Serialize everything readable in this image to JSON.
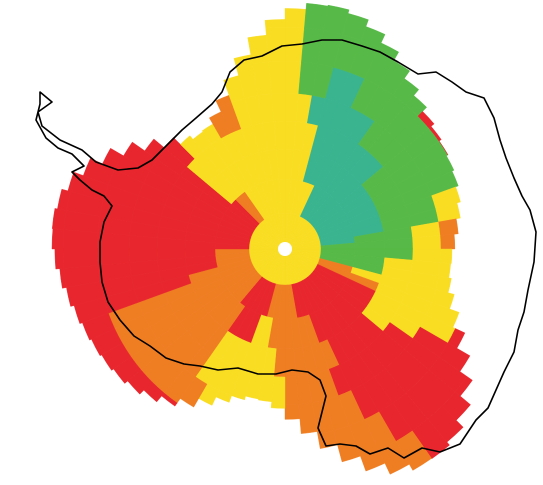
{
  "map": {
    "title": "",
    "palette": {
      "red": "#e8262d",
      "orange": "#ef7d22",
      "yellow": "#f9dd23",
      "light_green": "#57b947",
      "teal": "#39b48f"
    },
    "outline_color": "#000000",
    "center_color": "#ffffff",
    "rings": 8,
    "sectors": 72,
    "sector_colors_by_ring": [
      [
        "yellow",
        "yellow",
        "yellow",
        "yellow",
        "yellow",
        "yellow",
        "yellow",
        "yellow",
        "yellow",
        "yellow",
        "yellow",
        "yellow",
        "yellow",
        "yellow",
        "yellow",
        "yellow",
        "yellow",
        "yellow",
        "yellow",
        "yellow",
        "yellow",
        "yellow",
        "yellow",
        "yellow",
        "yellow",
        "yellow",
        "yellow",
        "yellow",
        "yellow",
        "yellow",
        "yellow",
        "yellow",
        "yellow",
        "yellow",
        "yellow",
        "yellow",
        "yellow",
        "yellow",
        "yellow",
        "yellow",
        "yellow",
        "yellow",
        "yellow",
        "yellow",
        "yellow",
        "yellow",
        "yellow",
        "yellow",
        "yellow",
        "yellow",
        "yellow",
        "yellow",
        "yellow",
        "yellow",
        "yellow",
        "yellow",
        "yellow",
        "yellow",
        "yellow",
        "yellow",
        "yellow",
        "yellow",
        "yellow",
        "yellow",
        "yellow",
        "yellow",
        "yellow",
        "yellow",
        "yellow",
        "yellow",
        "yellow",
        "yellow"
      ],
      [
        "yellow",
        "yellow",
        "yellow",
        "yellow",
        "yellow",
        "teal",
        "teal",
        "teal",
        "teal",
        "teal",
        "teal",
        "teal",
        "teal",
        "teal",
        "teal",
        "teal",
        "teal",
        "light_green",
        "light_green",
        "light_green",
        "light_green",
        "orange",
        "orange",
        "red",
        "red",
        "red",
        "red",
        "red",
        "red",
        "red",
        "red",
        "red",
        "red",
        "red",
        "orange",
        "orange",
        "orange",
        "orange",
        "orange",
        "red",
        "red",
        "red",
        "red",
        "red",
        "orange",
        "orange",
        "orange",
        "orange",
        "orange",
        "orange",
        "orange",
        "orange",
        "orange",
        "orange",
        "red",
        "red",
        "red",
        "red",
        "red",
        "red",
        "red",
        "red",
        "red",
        "orange",
        "orange",
        "yellow",
        "yellow",
        "yellow",
        "yellow",
        "yellow",
        "yellow",
        "yellow"
      ],
      [
        "yellow",
        "yellow",
        "yellow",
        "teal",
        "teal",
        "teal",
        "teal",
        "teal",
        "teal",
        "teal",
        "teal",
        "teal",
        "teal",
        "teal",
        "teal",
        "teal",
        "light_green",
        "light_green",
        "light_green",
        "light_green",
        "light_green",
        "yellow",
        "orange",
        "red",
        "red",
        "red",
        "red",
        "red",
        "red",
        "red",
        "red",
        "red",
        "orange",
        "orange",
        "orange",
        "orange",
        "orange",
        "orange",
        "yellow",
        "yellow",
        "red",
        "red",
        "red",
        "orange",
        "orange",
        "orange",
        "orange",
        "orange",
        "orange",
        "orange",
        "orange",
        "red",
        "red",
        "red",
        "red",
        "red",
        "red",
        "red",
        "red",
        "red",
        "red",
        "red",
        "yellow",
        "yellow",
        "yellow",
        "yellow",
        "yellow",
        "yellow",
        "yellow",
        "yellow",
        "yellow",
        "yellow"
      ],
      [
        "yellow",
        "yellow",
        "yellow",
        "teal",
        "teal",
        "teal",
        "teal",
        "teal",
        "teal",
        "teal",
        "light_green",
        "light_green",
        "light_green",
        "light_green",
        "light_green",
        "light_green",
        "light_green",
        "light_green",
        "light_green",
        "yellow",
        "yellow",
        "yellow",
        "yellow",
        "yellow",
        "yellow",
        "yellow",
        "red",
        "red",
        "red",
        "red",
        "red",
        "orange",
        "orange",
        "orange",
        "orange",
        "orange",
        "orange",
        "yellow",
        "yellow",
        "yellow",
        "yellow",
        "yellow",
        "yellow",
        "orange",
        "orange",
        "orange",
        "orange",
        "orange",
        "orange",
        "orange",
        "red",
        "red",
        "red",
        "red",
        "red",
        "red",
        "red",
        "red",
        "red",
        "red",
        "red",
        "red",
        "yellow",
        "yellow",
        "yellow",
        "yellow",
        "yellow",
        "yellow",
        "yellow",
        "yellow",
        "yellow",
        "yellow"
      ],
      [
        "yellow",
        "yellow",
        "teal",
        "teal",
        "teal",
        "teal",
        "teal",
        "light_green",
        "light_green",
        "light_green",
        "light_green",
        "light_green",
        "light_green",
        "light_green",
        "light_green",
        "light_green",
        "yellow",
        "yellow",
        "yellow",
        "yellow",
        "yellow",
        "yellow",
        "yellow",
        "yellow",
        "yellow",
        "red",
        "red",
        "red",
        "red",
        "red",
        "red",
        "red",
        "orange",
        "orange",
        "orange",
        "orange",
        "yellow",
        "yellow",
        "yellow",
        "yellow",
        "yellow",
        "yellow",
        "yellow",
        "orange",
        "orange",
        "orange",
        "orange",
        "orange",
        "orange",
        "orange",
        "red",
        "red",
        "red",
        "red",
        "red",
        "red",
        "red",
        "red",
        "red",
        "red",
        "red",
        "red",
        "red",
        "yellow",
        "yellow",
        "yellow",
        "orange",
        "orange",
        "yellow",
        "yellow",
        "yellow",
        "yellow"
      ],
      [
        "yellow",
        "light_green",
        "light_green",
        "teal",
        "teal",
        "light_green",
        "light_green",
        "light_green",
        "light_green",
        "light_green",
        "light_green",
        "light_green",
        "light_green",
        "light_green",
        "yellow",
        "yellow",
        "orange",
        "orange",
        "yellow",
        "yellow",
        "yellow",
        "yellow",
        "yellow",
        "yellow",
        "red",
        "red",
        "red",
        "red",
        "red",
        "red",
        "red",
        "orange",
        "orange",
        "orange",
        "orange",
        "orange",
        "yellow",
        "yellow",
        "yellow",
        "yellow",
        "yellow",
        "yellow",
        "orange",
        "orange",
        "orange",
        "orange",
        "orange",
        "orange",
        "orange",
        "orange",
        "red",
        "red",
        "red",
        "red",
        "red",
        "red",
        "red",
        "red",
        "red",
        "red",
        "red",
        "red",
        "red",
        "orange",
        "orange",
        "orange",
        "orange",
        "orange",
        "yellow",
        "yellow",
        "yellow",
        "yellow"
      ],
      [
        "yellow",
        "light_green",
        "light_green",
        "light_green",
        "light_green",
        "light_green",
        "light_green",
        "light_green",
        "light_green",
        "red",
        "red",
        "red",
        "orange",
        "orange",
        "yellow",
        "yellow",
        "yellow",
        "yellow",
        "yellow",
        "yellow",
        "orange",
        "orange",
        "orange",
        "red",
        "red",
        "red",
        "red",
        "red",
        "red",
        "red",
        "orange",
        "orange",
        "orange",
        "orange",
        "orange",
        "orange",
        "orange",
        "yellow",
        "yellow",
        "yellow",
        "orange",
        "orange",
        "orange",
        "red",
        "red",
        "red",
        "red",
        "red",
        "red",
        "red",
        "red",
        "red",
        "red",
        "red",
        "red",
        "red",
        "red",
        "red",
        "red",
        "red",
        "red",
        "red",
        "red",
        "red",
        "orange",
        "orange",
        "orange",
        "orange",
        "yellow",
        "yellow",
        "yellow",
        "yellow"
      ],
      [
        "yellow",
        "light_green",
        "light_green",
        "light_green",
        "light_green",
        "light_green",
        "red",
        "red",
        "orange",
        "orange",
        "yellow",
        "yellow",
        "yellow",
        "light_green",
        "light_green",
        "yellow",
        "yellow",
        "yellow",
        "yellow",
        "yellow",
        "orange",
        "orange",
        "red",
        "red",
        "red",
        "red",
        "red",
        "red",
        "red",
        "orange",
        "orange",
        "orange",
        "orange",
        "orange",
        "yellow",
        "yellow",
        "yellow",
        "yellow",
        "yellow",
        "orange",
        "orange",
        "red",
        "red",
        "red",
        "red",
        "red",
        "red",
        "red",
        "red",
        "red",
        "red",
        "red",
        "red",
        "red",
        "red",
        "red",
        "red",
        "red",
        "red",
        "red",
        "red",
        "red",
        "red",
        "red",
        "orange",
        "orange",
        "orange",
        "orange",
        "yellow",
        "yellow",
        "yellow",
        "yellow",
        "yellow"
      ]
    ]
  }
}
